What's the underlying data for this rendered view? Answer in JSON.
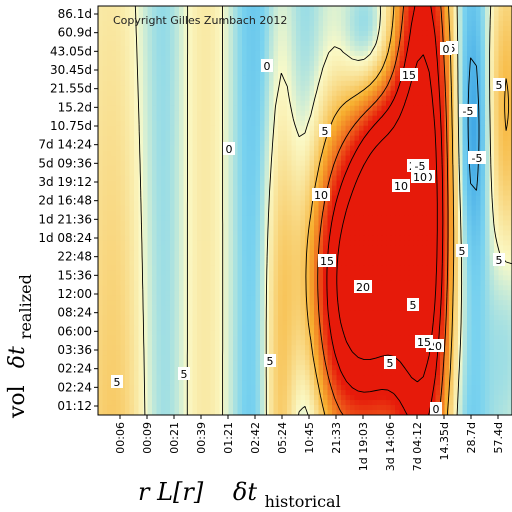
{
  "chart_data": {
    "type": "heatmap",
    "copyright": "Copyright Gilles Zumbach 2012",
    "ylabel": {
      "prefix": "vol",
      "symbol": "δt",
      "subscript": "realized"
    },
    "xlabel": {
      "prefix": "r L[r]",
      "symbol": "δt",
      "subscript": "historical"
    },
    "y_ticks": [
      "86.1d",
      "60.9d",
      "43.05d",
      "30.45d",
      "21.55d",
      "15.2d",
      "10.75d",
      "7d 14:24",
      "5d 09:36",
      "3d 19:12",
      "2d 16:48",
      "1d 21:36",
      "1d 08:24",
      "22:48",
      "15:36",
      "12:00",
      "08:24",
      "06:00",
      "03:36",
      "02:24",
      "02:24",
      "01:12"
    ],
    "x_ticks": [
      "00:06",
      "00:09",
      "00:21",
      "00:39",
      "01:21",
      "02:42",
      "05:24",
      "10:45",
      "21:33",
      "1d 19:03",
      "3d 14:06",
      "7d 04:12",
      "14.35d",
      "28.7d",
      "57.4d"
    ],
    "contour_labels": [
      "15",
      "5",
      "0",
      "-5",
      "5",
      "0",
      "5",
      "10",
      "20",
      "10",
      "0",
      "10",
      "5",
      "-5",
      "15",
      "5",
      "20",
      "5",
      "20",
      "15",
      "5",
      "5",
      "5",
      "0",
      "0",
      "5",
      "-5"
    ],
    "colors": {
      "strong_negative": "#1f8fe0",
      "negative": "#7ad3ef",
      "zero": "#fafac8",
      "positive": "#f7b030",
      "strong_positive": "#e61a0a"
    }
  }
}
